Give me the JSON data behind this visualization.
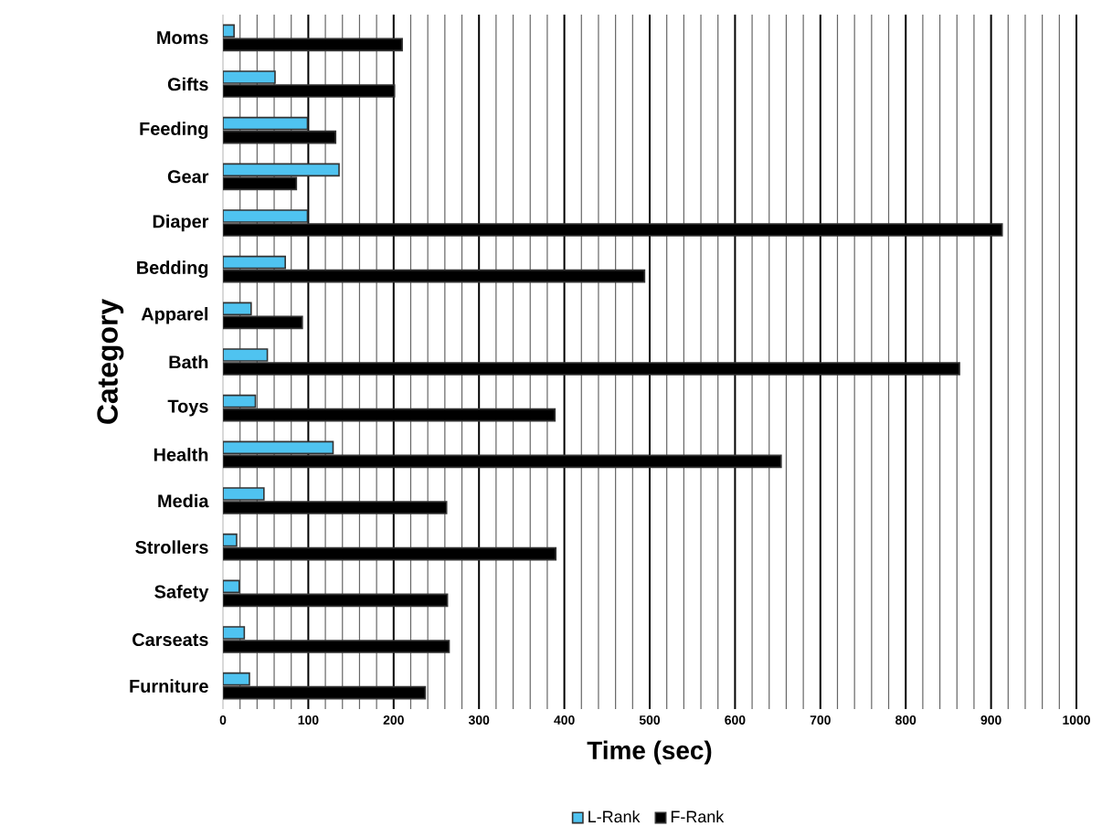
{
  "chart_data": {
    "type": "bar",
    "orientation": "horizontal",
    "xlabel": "Time (sec)",
    "ylabel": "Category",
    "categories": [
      "Moms",
      "Gifts",
      "Feeding",
      "Gear",
      "Diaper",
      "Bedding",
      "Apparel",
      "Bath",
      "Toys",
      "Health",
      "Media",
      "Strollers",
      "Safety",
      "Carseats",
      "Furniture"
    ],
    "series": [
      {
        "name": "L-Rank",
        "color": "#4fc3f0",
        "values": [
          13,
          61,
          99,
          136,
          99,
          73,
          33,
          52,
          38,
          129,
          48,
          16,
          19,
          25,
          31
        ]
      },
      {
        "name": "F-Rank",
        "color": "#000000",
        "values": [
          210,
          201,
          132,
          86,
          913,
          494,
          93,
          863,
          389,
          654,
          262,
          390,
          263,
          265,
          237
        ]
      }
    ],
    "xlim": [
      0,
      1000
    ],
    "xticks": [
      0,
      100,
      200,
      300,
      400,
      500,
      600,
      700,
      800,
      900,
      1000
    ],
    "grid": "x",
    "legend": "bottom"
  }
}
